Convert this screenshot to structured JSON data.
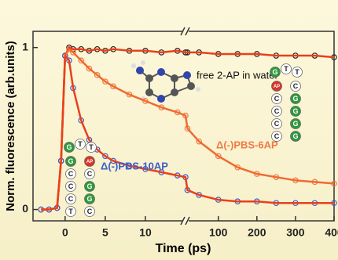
{
  "chart_data": {
    "type": "scatter-fit",
    "x_label": "Time (ps)",
    "y_label": "Norm. fluorescence (arb.units)",
    "x": [
      -3,
      -2,
      -1,
      -0.5,
      0,
      0.5,
      1,
      2,
      3,
      4,
      5,
      6,
      8,
      10,
      12,
      14,
      15,
      20,
      50,
      100,
      150,
      200,
      250,
      300,
      350,
      400
    ],
    "xlim": [
      -4,
      15
    ],
    "x2lim": [
      15,
      400
    ],
    "xticks": [
      0,
      5,
      10
    ],
    "x2ticks": [
      100,
      200,
      300,
      400
    ],
    "ylim": [
      -0.07,
      1.1
    ],
    "yticks": [
      0,
      1
    ],
    "series": [
      {
        "name": "free 2-AP in water",
        "color": "#222222",
        "fit_color": "#e8401c",
        "values": [
          0,
          0,
          0.01,
          0.3,
          0.95,
          1,
          0.99,
          0.99,
          0.98,
          0.99,
          0.98,
          0.99,
          0.98,
          0.98,
          0.97,
          0.98,
          0.97,
          0.97,
          0.97,
          0.96,
          0.96,
          0.96,
          0.95,
          0.95,
          0.95,
          0.94
        ]
      },
      {
        "name": "Δ(-)PBS-6AP",
        "color": "#f07a45",
        "fit_color": "#f06a30",
        "values": [
          0,
          0,
          0.01,
          0.3,
          0.95,
          0.99,
          0.97,
          0.92,
          0.87,
          0.83,
          0.79,
          0.76,
          0.71,
          0.67,
          0.63,
          0.6,
          0.58,
          0.5,
          0.42,
          0.33,
          0.26,
          0.22,
          0.2,
          0.18,
          0.17,
          0.16
        ]
      },
      {
        "name": "Δ(-)PBS-10AP",
        "color": "#3a5fc8",
        "fit_color": "#e8401c",
        "values": [
          0,
          0,
          0.01,
          0.3,
          0.95,
          0.92,
          0.75,
          0.55,
          0.43,
          0.37,
          0.33,
          0.3,
          0.27,
          0.25,
          0.23,
          0.21,
          0.2,
          0.12,
          0.09,
          0.06,
          0.05,
          0.05,
          0.04,
          0.04,
          0.04,
          0.04
        ]
      }
    ],
    "hairpins": [
      {
        "loop": [
          "G",
          "T",
          "T"
        ],
        "left": [
          "AP",
          "C",
          "C",
          "C",
          "C"
        ],
        "right": [
          "C",
          "G",
          "G",
          "G",
          "G"
        ]
      },
      {
        "loop": [
          "G",
          "T",
          "T"
        ],
        "left": [
          "G",
          "C",
          "C",
          "C",
          "T"
        ],
        "right": [
          "AP",
          "C",
          "G",
          "G",
          "C"
        ]
      }
    ]
  }
}
